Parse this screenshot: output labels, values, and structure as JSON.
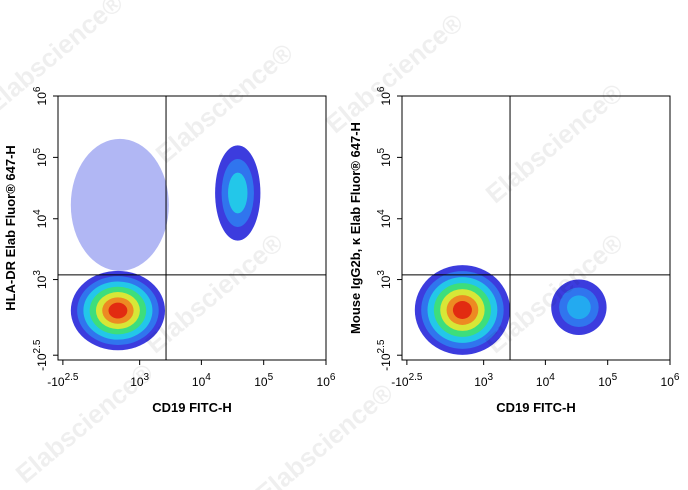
{
  "watermark": "Elabscience®",
  "chart_data": [
    {
      "type": "density",
      "xlabel": "CD19 FITC-H",
      "ylabel": "HLA-DR Elab Fluor® 647-H",
      "xscale": "biexponential",
      "yscale": "biexponential",
      "xlim": [
        -400,
        1000000
      ],
      "ylim": [
        -400,
        1000000
      ],
      "xticks": [
        {
          "value": -316,
          "label": "-10^2.5"
        },
        {
          "value": 1000,
          "label": "10^3"
        },
        {
          "value": 10000,
          "label": "10^4"
        },
        {
          "value": 100000,
          "label": "10^5"
        },
        {
          "value": 1000000,
          "label": "10^6"
        }
      ],
      "yticks": [
        {
          "value": -316,
          "label": "-10^2.5"
        },
        {
          "value": 1000,
          "label": "10^3"
        },
        {
          "value": 10000,
          "label": "10^4"
        },
        {
          "value": 100000,
          "label": "10^5"
        },
        {
          "value": 1000000,
          "label": "10^6"
        }
      ],
      "gate": {
        "x": 2700,
        "y": 1200
      },
      "populations": [
        {
          "xrange": [
            -200,
            3000
          ],
          "yrange": [
            1400,
            200000
          ],
          "colors": [
            "#2030e0"
          ]
        },
        {
          "xrange": [
            -200,
            2600
          ],
          "yrange": [
            -240,
            1400
          ],
          "colors": [
            "#1a1ad8",
            "#2f7bf0",
            "#22d0e8",
            "#40e070",
            "#e8e830",
            "#f08020",
            "#e02010"
          ]
        },
        {
          "xrange": [
            16600,
            88600
          ],
          "yrange": [
            4400,
            157000
          ],
          "colors": [
            "#1a1ad8",
            "#2f7bf0",
            "#22d0e8"
          ]
        }
      ]
    },
    {
      "type": "density",
      "xlabel": "CD19 FITC-H",
      "ylabel": "Mouse IgG2b, κ Elab Fluor® 647-H",
      "xscale": "biexponential",
      "yscale": "biexponential",
      "xlim": [
        -400,
        1000000
      ],
      "ylim": [
        -400,
        1000000
      ],
      "xticks": [
        {
          "value": -316,
          "label": "-10^2.5"
        },
        {
          "value": 1000,
          "label": "10^3"
        },
        {
          "value": 10000,
          "label": "10^4"
        },
        {
          "value": 100000,
          "label": "10^5"
        },
        {
          "value": 1000000,
          "label": "10^6"
        }
      ],
      "yticks": [
        {
          "value": -316,
          "label": "-10^2.5"
        },
        {
          "value": 1000,
          "label": "10^3"
        },
        {
          "value": 10000,
          "label": "10^4"
        },
        {
          "value": 100000,
          "label": "10^5"
        },
        {
          "value": 1000000,
          "label": "10^6"
        }
      ],
      "gate": {
        "x": 2700,
        "y": 1200
      },
      "populations": [
        {
          "xrange": [
            -200,
            2700
          ],
          "yrange": [
            -310,
            1740
          ],
          "colors": [
            "#1a1ad8",
            "#2f7bf0",
            "#22d0e8",
            "#40e070",
            "#e8e830",
            "#f08020",
            "#e02010"
          ]
        },
        {
          "xrange": [
            12400,
            96000
          ],
          "yrange": [
            -48,
            1000
          ],
          "colors": [
            "#1a1ad8",
            "#2f7bf0",
            "#22b0f0"
          ]
        }
      ]
    }
  ]
}
